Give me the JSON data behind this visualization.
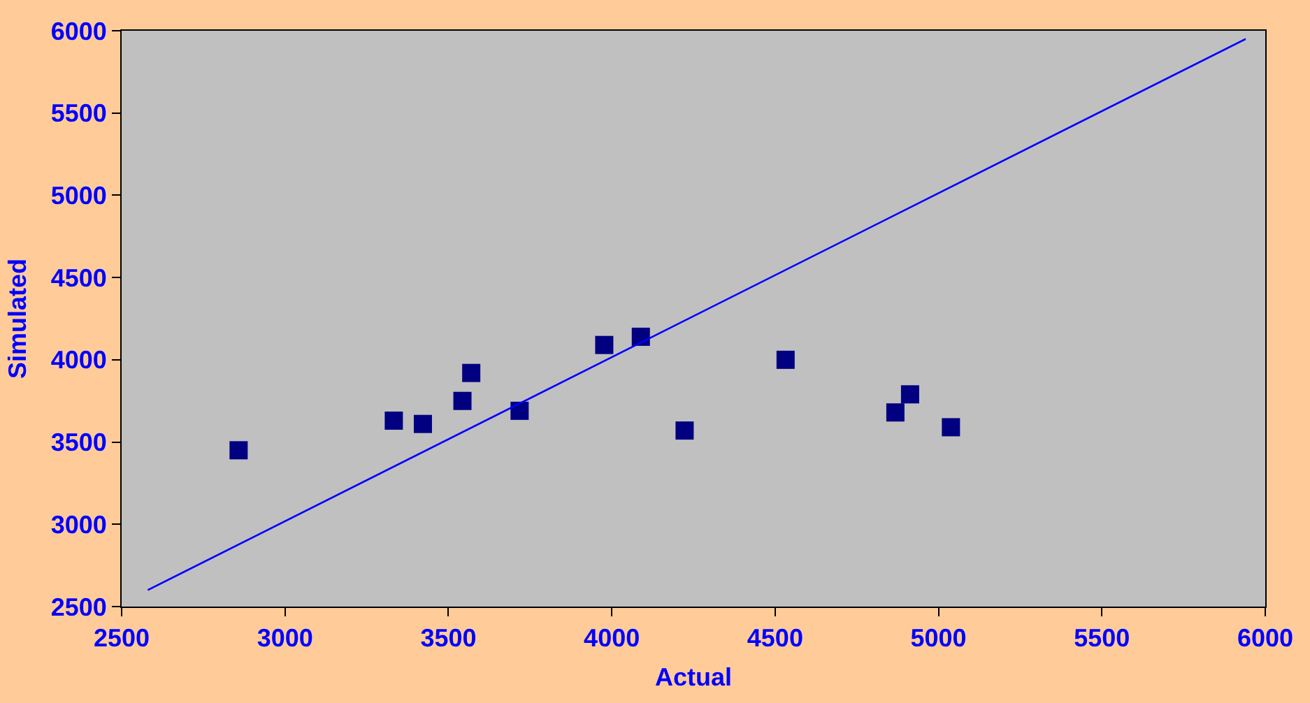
{
  "chart_data": {
    "type": "scatter",
    "xlabel": "Actual",
    "ylabel": "Simulated",
    "series": [
      {
        "color": "#000080",
        "marker": "square",
        "x": [
          2858,
          3333,
          3422,
          3543,
          3570,
          3718,
          3977,
          4089,
          4223,
          4532,
          4868,
          4913,
          5038
        ],
        "values": [
          3450,
          3630,
          3610,
          3750,
          3920,
          3690,
          4090,
          4140,
          3570,
          4000,
          3680,
          3790,
          3590
        ]
      },
      {
        "type": "line",
        "color": "#0000ff",
        "marker": "none",
        "line_style": "solid",
        "x": [
          2580,
          5940
        ],
        "values": [
          2600,
          5950
        ]
      }
    ],
    "xlim": [
      2500,
      6000
    ],
    "xticks": [
      2500,
      3000,
      3500,
      4000,
      4500,
      5000,
      5500,
      6000
    ],
    "ylim": [
      2500,
      6000
    ],
    "yticks": [
      2500,
      3000,
      3500,
      4000,
      4500,
      5000,
      5500,
      6000
    ],
    "grid": false
  }
}
